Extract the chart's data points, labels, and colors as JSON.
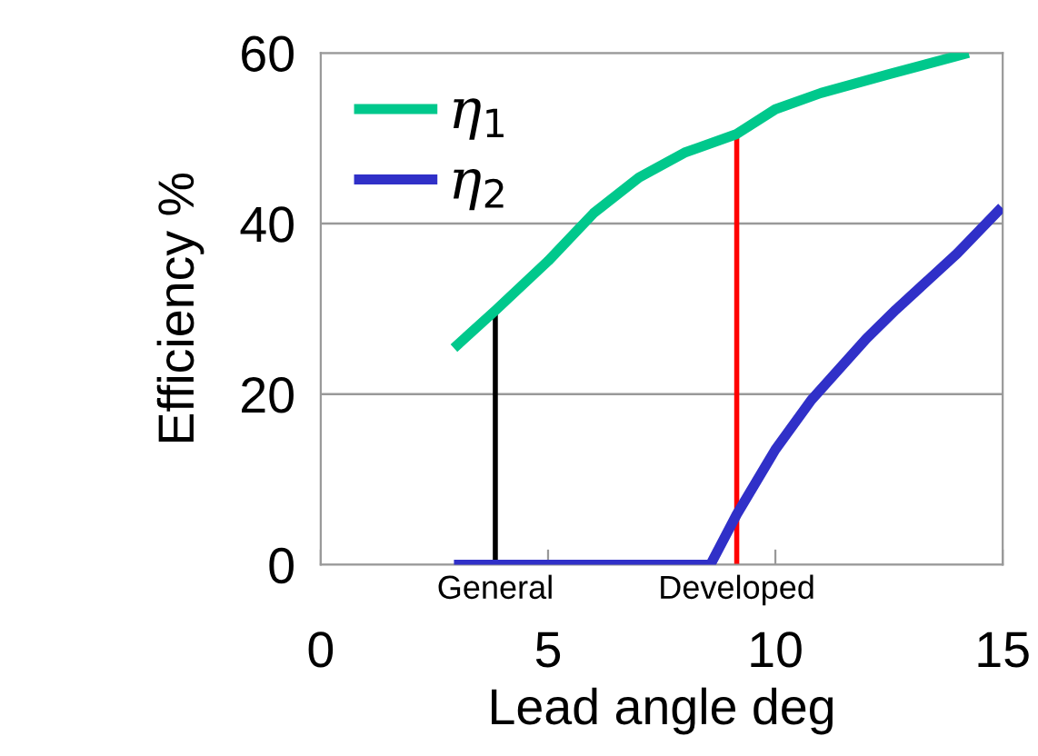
{
  "chart_data": {
    "type": "line",
    "xlabel": "Lead angle deg",
    "ylabel": "Efficiency %",
    "xlim": [
      0,
      15
    ],
    "ylim": [
      0,
      60
    ],
    "xticks": [
      0,
      5,
      10,
      15
    ],
    "yticks": [
      0,
      20,
      40,
      60
    ],
    "grid": "y",
    "legend": "top left",
    "line_style": "solid",
    "marker": "none",
    "series": [
      {
        "name": "η$_{1}$",
        "color": "#00c88c",
        "x": [
          2.93,
          3.84,
          5,
          6,
          7,
          8,
          9.15,
          10,
          11,
          12.5,
          14.25
        ],
        "values": [
          25.4,
          29.8,
          35.6,
          41.2,
          45.4,
          48.3,
          50.5,
          53.4,
          55.3,
          57.5,
          60
        ]
      },
      {
        "name": "η$_{2}$",
        "color": "#3030c8",
        "x": [
          2.93,
          8.57,
          9.15,
          10,
          10.79,
          12,
          12.65,
          14,
          14.98
        ],
        "values": [
          0,
          0,
          5.9,
          13.5,
          19.3,
          26.5,
          29.9,
          36.5,
          41.9
        ]
      },
      {
        "color": "#000000",
        "x": [
          3.84,
          3.84
        ],
        "values": [
          0,
          29.8
        ]
      },
      {
        "color": "#ff0000",
        "x": [
          9.15,
          9.15
        ],
        "values": [
          0,
          50.5
        ]
      }
    ],
    "annotations": [
      {
        "text": "General",
        "x": 3.84,
        "y": 0
      },
      {
        "text": "Developed",
        "x": 9.15,
        "y": 0
      }
    ]
  }
}
